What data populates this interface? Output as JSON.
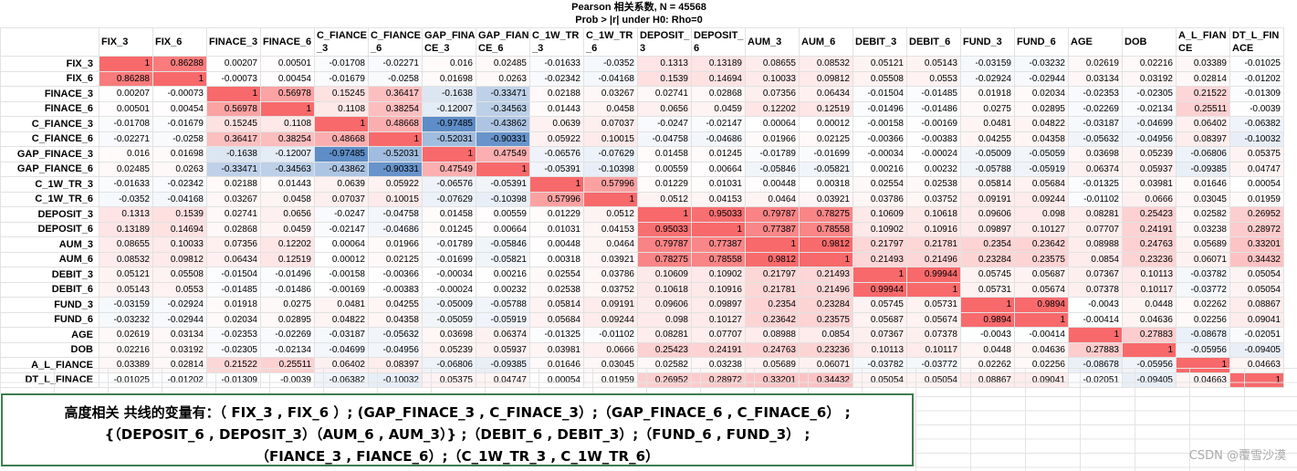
{
  "header": {
    "line1": "Pearson 相关系数, N = 45568",
    "line2": "Prob > |r| under H0: Rho=0"
  },
  "columns": [
    "FIX_3",
    "FIX_6",
    "FINACE_3",
    "FINACE_6",
    "C_FIANCE_3",
    "C_FIANCE_6",
    "GAP_FINACE_3",
    "GAP_FIANCE_6",
    "C_1W_TR_3",
    "C_1W_TR_6",
    "DEPOSIT_3",
    "DEPOSIT_6",
    "AUM_3",
    "AUM_6",
    "DEBIT_3",
    "DEBIT_6",
    "FUND_3",
    "FUND_6",
    "AGE",
    "DOB",
    "A_L_FIANCE",
    "DT_L_FINACE"
  ],
  "rows": [
    {
      "name": "FIX_3",
      "values": [
        "1",
        "0.86288",
        "0.00207",
        "0.00501",
        "-0.01708",
        "-0.02271",
        "0.016",
        "0.02485",
        "-0.01633",
        "-0.0352",
        "0.1313",
        "0.13189",
        "0.08655",
        "0.08532",
        "0.05121",
        "0.05143",
        "-0.03159",
        "-0.03232",
        "0.02619",
        "0.02216",
        "0.03389",
        "-0.01025"
      ]
    },
    {
      "name": "FIX_6",
      "values": [
        "0.86288",
        "1",
        "-0.00073",
        "0.00454",
        "-0.01679",
        "-0.0258",
        "0.01698",
        "0.0263",
        "-0.02342",
        "-0.04168",
        "0.1539",
        "0.14694",
        "0.10033",
        "0.09812",
        "0.05508",
        "0.0553",
        "-0.02924",
        "-0.02944",
        "0.03134",
        "0.03192",
        "0.02814",
        "-0.01202"
      ]
    },
    {
      "name": "FINACE_3",
      "values": [
        "0.00207",
        "-0.00073",
        "1",
        "0.56978",
        "0.15245",
        "0.36417",
        "-0.1638",
        "-0.33471",
        "0.02188",
        "0.03267",
        "0.02741",
        "0.02868",
        "0.07356",
        "0.06434",
        "-0.01504",
        "-0.01485",
        "0.01918",
        "0.02034",
        "-0.02353",
        "-0.02305",
        "0.21522",
        "-0.01309"
      ]
    },
    {
      "name": "FINACE_6",
      "values": [
        "0.00501",
        "0.00454",
        "0.56978",
        "1",
        "0.1108",
        "0.38254",
        "-0.12007",
        "-0.34563",
        "0.01443",
        "0.0458",
        "0.0656",
        "0.0459",
        "0.12202",
        "0.12519",
        "-0.01496",
        "-0.01486",
        "0.0275",
        "0.02895",
        "-0.02269",
        "-0.02134",
        "0.25511",
        "-0.0039"
      ]
    },
    {
      "name": "C_FIANCE_3",
      "values": [
        "-0.01708",
        "-0.01679",
        "0.15245",
        "0.1108",
        "1",
        "0.48668",
        "-0.97485",
        "-0.43862",
        "0.0639",
        "0.07037",
        "-0.0247",
        "-0.02147",
        "0.00064",
        "0.00012",
        "-0.00158",
        "-0.00169",
        "0.0481",
        "0.04822",
        "-0.03187",
        "-0.04699",
        "0.06402",
        "-0.06382"
      ]
    },
    {
      "name": "C_FIANCE_6",
      "values": [
        "-0.02271",
        "-0.0258",
        "0.36417",
        "0.38254",
        "0.48668",
        "1",
        "-0.52031",
        "-0.90331",
        "0.05922",
        "0.10015",
        "-0.04758",
        "-0.04686",
        "0.01966",
        "0.02125",
        "-0.00366",
        "-0.00383",
        "0.04255",
        "0.04358",
        "-0.05632",
        "-0.04956",
        "0.08397",
        "-0.10032"
      ]
    },
    {
      "name": "GAP_FINACE_3",
      "values": [
        "0.016",
        "0.01698",
        "-0.1638",
        "-0.12007",
        "-0.97485",
        "-0.52031",
        "1",
        "0.47549",
        "-0.06576",
        "-0.07629",
        "0.01458",
        "0.01245",
        "-0.01789",
        "-0.01699",
        "-0.00034",
        "-0.00024",
        "-0.05009",
        "-0.05059",
        "0.03698",
        "0.05239",
        "-0.06806",
        "0.05375"
      ]
    },
    {
      "name": "GAP_FIANCE_6",
      "values": [
        "0.02485",
        "0.0263",
        "-0.33471",
        "-0.34563",
        "-0.43862",
        "-0.90331",
        "0.47549",
        "1",
        "-0.05391",
        "-0.10398",
        "0.00559",
        "0.00664",
        "-0.05846",
        "-0.05821",
        "0.00216",
        "0.00232",
        "-0.05788",
        "-0.05919",
        "0.06374",
        "0.05937",
        "-0.09385",
        "0.04747"
      ]
    },
    {
      "name": "C_1W_TR_3",
      "values": [
        "-0.01633",
        "-0.02342",
        "0.02188",
        "0.01443",
        "0.0639",
        "0.05922",
        "-0.06576",
        "-0.05391",
        "1",
        "0.57996",
        "0.01229",
        "0.01031",
        "0.00448",
        "0.00318",
        "0.02554",
        "0.02538",
        "0.05814",
        "0.05684",
        "-0.01325",
        "0.03981",
        "0.01646",
        "0.00054"
      ]
    },
    {
      "name": "C_1W_TR_6",
      "values": [
        "-0.0352",
        "-0.04168",
        "0.03267",
        "0.0458",
        "0.07037",
        "0.10015",
        "-0.07629",
        "-0.10398",
        "0.57996",
        "1",
        "0.0512",
        "0.04153",
        "0.0464",
        "0.03921",
        "0.03786",
        "0.03752",
        "0.09191",
        "0.09244",
        "-0.01102",
        "0.0666",
        "0.03045",
        "0.01959"
      ]
    },
    {
      "name": "DEPOSIT_3",
      "values": [
        "0.1313",
        "0.1539",
        "0.02741",
        "0.0656",
        "-0.0247",
        "-0.04758",
        "0.01458",
        "0.00559",
        "0.01229",
        "0.0512",
        "1",
        "0.95033",
        "0.79787",
        "0.78275",
        "0.10609",
        "0.10618",
        "0.09606",
        "0.098",
        "0.08281",
        "0.25423",
        "0.02582",
        "0.26952"
      ]
    },
    {
      "name": "DEPOSIT_6",
      "values": [
        "0.13189",
        "0.14694",
        "0.02868",
        "0.0459",
        "-0.02147",
        "-0.04686",
        "0.01245",
        "0.00664",
        "0.01031",
        "0.04153",
        "0.95033",
        "1",
        "0.77387",
        "0.78558",
        "0.10902",
        "0.10916",
        "0.09897",
        "0.10127",
        "0.07707",
        "0.24191",
        "0.03238",
        "0.28972"
      ]
    },
    {
      "name": "AUM_3",
      "values": [
        "0.08655",
        "0.10033",
        "0.07356",
        "0.12202",
        "0.00064",
        "0.01966",
        "-0.01789",
        "-0.05846",
        "0.00448",
        "0.0464",
        "0.79787",
        "0.77387",
        "1",
        "0.9812",
        "0.21797",
        "0.21781",
        "0.2354",
        "0.23642",
        "0.08988",
        "0.24763",
        "0.05689",
        "0.33201"
      ]
    },
    {
      "name": "AUM_6",
      "values": [
        "0.08532",
        "0.09812",
        "0.06434",
        "0.12519",
        "0.00012",
        "0.02125",
        "-0.01699",
        "-0.05821",
        "0.00318",
        "0.03921",
        "0.78275",
        "0.78558",
        "0.9812",
        "1",
        "0.21493",
        "0.21496",
        "0.23284",
        "0.23575",
        "0.0854",
        "0.23236",
        "0.06071",
        "0.34432"
      ]
    },
    {
      "name": "DEBIT_3",
      "values": [
        "0.05121",
        "0.05508",
        "-0.01504",
        "-0.01496",
        "-0.00158",
        "-0.00366",
        "-0.00034",
        "0.00216",
        "0.02554",
        "0.03786",
        "0.10609",
        "0.10902",
        "0.21797",
        "0.21493",
        "1",
        "0.99944",
        "0.05745",
        "0.05687",
        "0.07367",
        "0.10113",
        "-0.03782",
        "0.05054"
      ]
    },
    {
      "name": "DEBIT_6",
      "values": [
        "0.05143",
        "0.0553",
        "-0.01485",
        "-0.01486",
        "-0.00169",
        "-0.00383",
        "-0.00024",
        "0.00232",
        "0.02538",
        "0.03752",
        "0.10618",
        "0.10916",
        "0.21781",
        "0.21496",
        "0.99944",
        "1",
        "0.05731",
        "0.05674",
        "0.07378",
        "0.10117",
        "-0.03772",
        "0.05054"
      ]
    },
    {
      "name": "FUND_3",
      "values": [
        "-0.03159",
        "-0.02924",
        "0.01918",
        "0.0275",
        "0.0481",
        "0.04255",
        "-0.05009",
        "-0.05788",
        "0.05814",
        "0.09191",
        "0.09606",
        "0.09897",
        "0.2354",
        "0.23284",
        "0.05745",
        "0.05731",
        "1",
        "0.9894",
        "-0.0043",
        "0.0448",
        "0.02262",
        "0.08867"
      ]
    },
    {
      "name": "FUND_6",
      "values": [
        "-0.03232",
        "-0.02944",
        "0.02034",
        "0.02895",
        "0.04822",
        "0.04358",
        "-0.05059",
        "-0.05919",
        "0.05684",
        "0.09244",
        "0.098",
        "0.10127",
        "0.23642",
        "0.23575",
        "0.05687",
        "0.05674",
        "0.9894",
        "1",
        "-0.00414",
        "0.04636",
        "0.02256",
        "0.09041"
      ]
    },
    {
      "name": "AGE",
      "values": [
        "0.02619",
        "0.03134",
        "-0.02353",
        "-0.02269",
        "-0.03187",
        "-0.05632",
        "0.03698",
        "0.06374",
        "-0.01325",
        "-0.01102",
        "0.08281",
        "0.07707",
        "0.08988",
        "0.0854",
        "0.07367",
        "0.07378",
        "-0.0043",
        "-0.00414",
        "1",
        "0.27883",
        "-0.08678",
        "-0.02051"
      ]
    },
    {
      "name": "DOB",
      "values": [
        "0.02216",
        "0.03192",
        "-0.02305",
        "-0.02134",
        "-0.04699",
        "-0.04956",
        "0.05239",
        "0.05937",
        "0.03981",
        "0.0666",
        "0.25423",
        "0.24191",
        "0.24763",
        "0.23236",
        "0.10113",
        "0.10117",
        "0.0448",
        "0.04636",
        "0.27883",
        "1",
        "-0.05956",
        "-0.09405"
      ]
    },
    {
      "name": "A_L_FIANCE",
      "values": [
        "0.03389",
        "0.02814",
        "0.21522",
        "0.25511",
        "0.06402",
        "0.08397",
        "-0.06806",
        "-0.09385",
        "0.01646",
        "0.03045",
        "0.02582",
        "0.03238",
        "0.05689",
        "0.06071",
        "-0.03782",
        "-0.03772",
        "0.02262",
        "0.02256",
        "-0.08678",
        "-0.05956",
        "1",
        "0.04663"
      ]
    },
    {
      "name": "DT_L_FINACE",
      "values": [
        "-0.01025",
        "-0.01202",
        "-0.01309",
        "-0.0039",
        "-0.06382",
        "-0.10032",
        "0.05375",
        "0.04747",
        "0.00054",
        "0.01959",
        "0.26952",
        "0.28972",
        "0.33201",
        "0.34432",
        "0.05054",
        "0.05054",
        "0.08867",
        "0.09041",
        "-0.02051",
        "-0.09405",
        "0.04663",
        "1"
      ]
    }
  ],
  "note": {
    "line1": "高度相关 共线的变量有：（ FIX_3 , FIX_6 ）;  (GAP_FINACE_3 , C_FINACE_3）;（GAP_FINACE_6 , C_FINACE_6）  ;",
    "line2": "{（DEPOSIT_6 , DEPOSIT_3）（AUM_6 , AUM_3）} ;（DEBIT_6 , DEBIT_3）;（FUND_6 , FUND_3）  ;",
    "line3": "（FIANCE_3 , FIANCE_6）;（C_1W_TR_3 , C_1W_TR_6）"
  },
  "watermark": "CSDN @覆雪沙漠",
  "colors": {
    "positive": "#f8696b",
    "negative": "#5a8ac6",
    "neutral": "#ffffff",
    "note_border": "#3e7d50"
  }
}
